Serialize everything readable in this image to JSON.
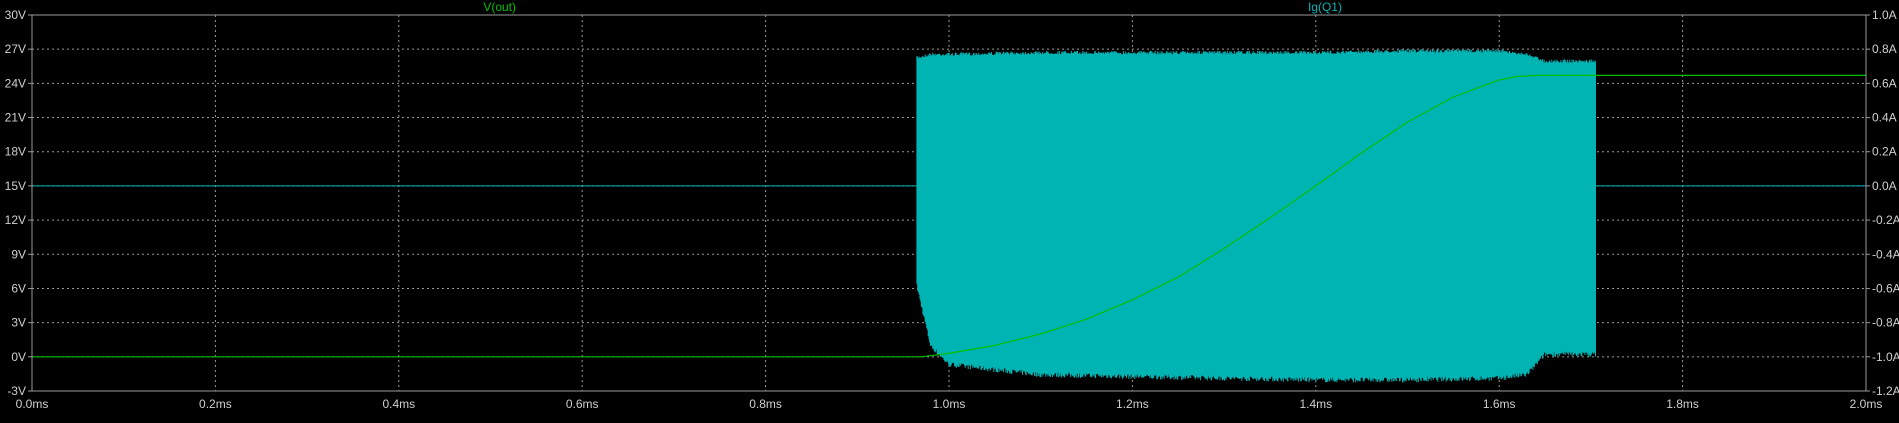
{
  "colors": {
    "background": "#000000",
    "grid": "#9a9a9a",
    "frame": "#9a9a9a",
    "axis_text": "#cfcfcf",
    "vout": "#00c000",
    "ig": "#00b4b4"
  },
  "chart_data": {
    "type": "line",
    "title": "",
    "traces": [
      {
        "name": "V(out)",
        "axis": "left",
        "color": "#00c000"
      },
      {
        "name": "Ig(Q1)",
        "axis": "right",
        "color": "#00b4b4"
      }
    ],
    "x_axis": {
      "label": "",
      "unit": "ms",
      "range": [
        0.0,
        2.0
      ],
      "ticks": [
        "0.0ms",
        "0.2ms",
        "0.4ms",
        "0.6ms",
        "0.8ms",
        "1.0ms",
        "1.2ms",
        "1.4ms",
        "1.6ms",
        "1.8ms",
        "2.0ms"
      ],
      "tick_values": [
        0.0,
        0.2,
        0.4,
        0.6,
        0.8,
        1.0,
        1.2,
        1.4,
        1.6,
        1.8,
        2.0
      ]
    },
    "y_left": {
      "label": "",
      "unit": "V",
      "range": [
        -3,
        30
      ],
      "ticks": [
        "30V",
        "27V",
        "24V",
        "21V",
        "18V",
        "15V",
        "12V",
        "9V",
        "6V",
        "3V",
        "0V",
        "-3V"
      ],
      "tick_values": [
        30,
        27,
        24,
        21,
        18,
        15,
        12,
        9,
        6,
        3,
        0,
        -3
      ]
    },
    "y_right": {
      "label": "",
      "unit": "A",
      "range": [
        -1.2,
        1.0
      ],
      "ticks": [
        "1.0A",
        "0.8A",
        "0.6A",
        "0.4A",
        "0.2A",
        "0.0A",
        "-0.2A",
        "-0.4A",
        "-0.6A",
        "-0.8A",
        "-1.0A",
        "-1.2A"
      ],
      "tick_values": [
        1.0,
        0.8,
        0.6,
        0.4,
        0.2,
        0.0,
        -0.2,
        -0.4,
        -0.6,
        -0.8,
        -1.0,
        -1.2
      ]
    },
    "grid": true,
    "vout_points": {
      "x": [
        0.0,
        0.97,
        1.0,
        1.05,
        1.1,
        1.15,
        1.2,
        1.25,
        1.3,
        1.35,
        1.4,
        1.45,
        1.5,
        1.55,
        1.6,
        1.62,
        1.64,
        1.7,
        2.0
      ],
      "y": [
        0.0,
        0.0,
        0.3,
        1.0,
        2.0,
        3.3,
        5.0,
        7.0,
        9.5,
        12.2,
        15.0,
        17.9,
        20.6,
        22.8,
        24.3,
        24.6,
        24.7,
        24.7,
        24.7
      ]
    },
    "ig_envelope": {
      "x": [
        0.965,
        0.98,
        1.0,
        1.1,
        1.2,
        1.3,
        1.4,
        1.5,
        1.6,
        1.63,
        1.65,
        1.7
      ],
      "y_max": [
        0.76,
        0.78,
        0.78,
        0.79,
        0.79,
        0.79,
        0.79,
        0.8,
        0.8,
        0.78,
        0.74,
        0.74
      ],
      "y_min": [
        -0.6,
        -0.95,
        -1.06,
        -1.12,
        -1.13,
        -1.14,
        -1.15,
        -1.15,
        -1.14,
        -1.12,
        -1.0,
        -1.0
      ]
    },
    "ig_idle_value": 0.0,
    "ig_burst_start": 0.965,
    "ig_burst_end": 1.705
  }
}
